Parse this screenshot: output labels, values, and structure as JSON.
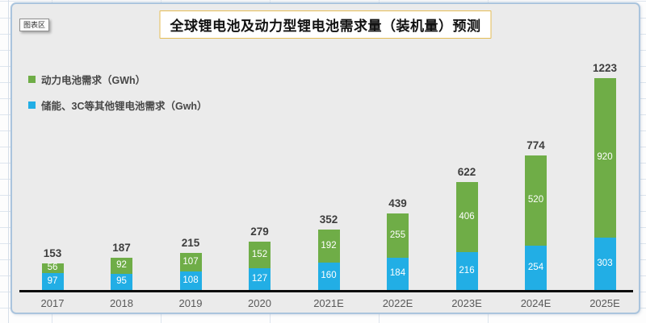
{
  "excel": {
    "chart_area_tooltip": "图表区"
  },
  "chart_data": {
    "type": "bar",
    "stacked": true,
    "title": "全球锂电池及动力型锂电池需求量（装机量）预测",
    "categories": [
      "2017",
      "2018",
      "2019",
      "2020",
      "2021E",
      "2022E",
      "2023E",
      "2024E",
      "2025E"
    ],
    "series": [
      {
        "name": "动力电池需求（GWh）",
        "color": "#6FAD47",
        "values": [
          56,
          92,
          107,
          152,
          192,
          255,
          406,
          520,
          920
        ]
      },
      {
        "name": "储能、3C等其他锂电池需求（Gwh）",
        "color": "#22AEE5",
        "values": [
          97,
          95,
          108,
          127,
          160,
          184,
          216,
          254,
          303
        ]
      }
    ],
    "totals": [
      153,
      187,
      215,
      279,
      352,
      439,
      622,
      774,
      1223
    ],
    "xlabel": "",
    "ylabel": "",
    "ylim": [
      0,
      1300
    ],
    "grid": false,
    "legend_position": "top-left"
  }
}
